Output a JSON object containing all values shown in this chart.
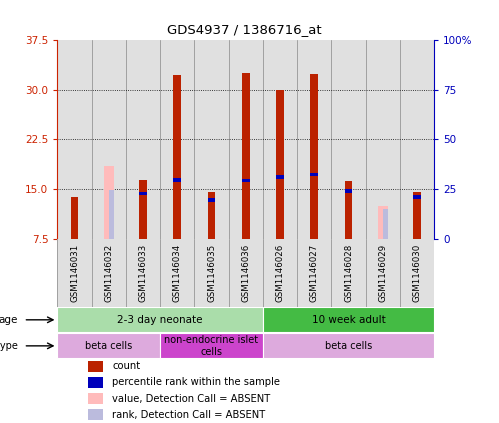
{
  "title": "GDS4937 / 1386716_at",
  "samples": [
    "GSM1146031",
    "GSM1146032",
    "GSM1146033",
    "GSM1146034",
    "GSM1146035",
    "GSM1146036",
    "GSM1146026",
    "GSM1146027",
    "GSM1146028",
    "GSM1146029",
    "GSM1146030"
  ],
  "red_bars": [
    13.8,
    0,
    16.4,
    32.2,
    14.5,
    32.5,
    30.0,
    32.4,
    16.2,
    0,
    14.5
  ],
  "blue_bars": [
    0,
    0,
    14.3,
    16.4,
    13.3,
    16.3,
    16.8,
    17.2,
    14.7,
    0,
    13.8
  ],
  "pink_bars": [
    0,
    18.5,
    0,
    0,
    0,
    0,
    0,
    0,
    0,
    12.5,
    0
  ],
  "lavender_bars": [
    0,
    14.8,
    0,
    0,
    0,
    0,
    0,
    0,
    0,
    12.0,
    0
  ],
  "ylim_min": 7.5,
  "ylim_max": 37.5,
  "yticks_left": [
    7.5,
    15.0,
    22.5,
    30.0,
    37.5
  ],
  "yticks_right_labels": [
    "0",
    "25",
    "50",
    "75",
    "100%"
  ],
  "color_red": "#BB2200",
  "color_blue": "#0000BB",
  "color_pink": "#FFBBBB",
  "color_lavender": "#BBBBDD",
  "color_axis_left": "#CC2200",
  "color_axis_right": "#0000BB",
  "color_col_bg": "#E0E0E0",
  "color_col_border": "#888888",
  "age_groups": [
    {
      "label": "2-3 day neonate",
      "start": 0,
      "end": 6,
      "color": "#AADDAA"
    },
    {
      "label": "10 week adult",
      "start": 6,
      "end": 11,
      "color": "#44BB44"
    }
  ],
  "cell_groups": [
    {
      "label": "beta cells",
      "start": 0,
      "end": 3,
      "color": "#DDAADD"
    },
    {
      "label": "non-endocrine islet\ncells",
      "start": 3,
      "end": 6,
      "color": "#CC44CC"
    },
    {
      "label": "beta cells",
      "start": 6,
      "end": 11,
      "color": "#DDAADD"
    }
  ],
  "legend_items": [
    {
      "label": "count",
      "color": "#BB2200"
    },
    {
      "label": "percentile rank within the sample",
      "color": "#0000BB"
    },
    {
      "label": "value, Detection Call = ABSENT",
      "color": "#FFBBBB"
    },
    {
      "label": "rank, Detection Call = ABSENT",
      "color": "#BBBBDD"
    }
  ],
  "dotted_line_values": [
    15.0,
    22.5,
    30.0
  ]
}
